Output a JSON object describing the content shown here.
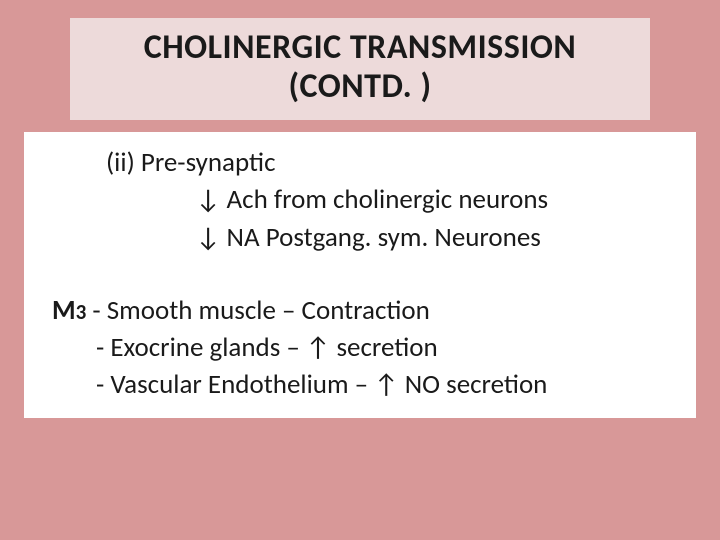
{
  "title": {
    "line1": "CHOLINERGIC TRANSMISSION",
    "line2": "(CONTD. )"
  },
  "body": {
    "presyn_heading": "(ii) Pre-synaptic",
    "presyn_item1": "↓ Ach from cholinergic neurons",
    "presyn_item2": "↓  NA Postgang. sym. Neurones",
    "m3_label_main": "M",
    "m3_label_sub": "3",
    "m3_rest": " - Smooth muscle – Contraction",
    "m3_line2": "- Exocrine glands – ↑ secretion",
    "m3_line3": "- Vascular Endothelium – ↑  NO secretion"
  },
  "colors": {
    "slide_bg": "#d89898",
    "title_bg": "#eddada",
    "content_bg": "#ffffff",
    "text": "#1a1a1a"
  }
}
